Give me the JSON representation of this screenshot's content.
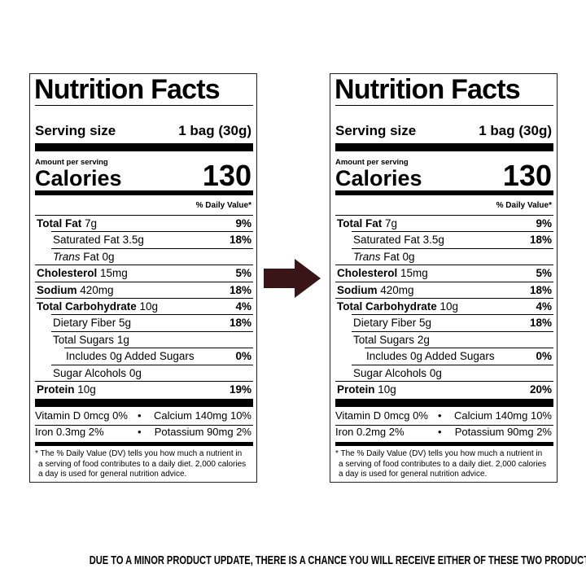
{
  "labels": [
    {
      "title": "Nutrition Facts",
      "serving_label": "Serving size",
      "serving_value": "1 bag (30g)",
      "amount_per_serving": "Amount per serving",
      "calories_label": "Calories",
      "calories_value": "130",
      "dv_header": "% Daily Value*",
      "rows": [
        {
          "name": "Total Fat",
          "detail": "7g",
          "dv": "9%"
        },
        {
          "name": "Saturated Fat",
          "detail": "3.5g",
          "dv": "18%"
        },
        {
          "name": "Trans",
          "detail": "Fat 0g"
        },
        {
          "name": "Cholesterol",
          "detail": "15mg",
          "dv": "5%"
        },
        {
          "name": "Sodium",
          "detail": "420mg",
          "dv": "18%"
        },
        {
          "name": "Total Carbohydrate",
          "detail": "10g",
          "dv": "4%"
        },
        {
          "name": "Dietary Fiber",
          "detail": "5g",
          "dv": "18%"
        },
        {
          "name": "Total Sugars",
          "detail": "1g"
        },
        {
          "name": "Includes 0g Added Sugars",
          "dv": "0%"
        },
        {
          "name": "Sugar Alcohols",
          "detail": "0g"
        },
        {
          "name": "Protein",
          "detail": "10g",
          "dv": "19%"
        }
      ],
      "vitamins": [
        [
          "Vitamin D 0mcg 0%",
          "Calcium 140mg 10%"
        ],
        [
          "Iron 0.3mg 2%",
          "Potassium 90mg 2%"
        ]
      ],
      "footnote_lines": [
        "* The % Daily Value (DV) tells you how much a nutrient in",
        "a serving of food contributes to a daily diet. 2,000 calories",
        "a day is used for general nutrition advice."
      ]
    },
    {
      "title": "Nutrition Facts",
      "serving_label": "Serving size",
      "serving_value": "1 bag (30g)",
      "amount_per_serving": "Amount per serving",
      "calories_label": "Calories",
      "calories_value": "130",
      "dv_header": "% Daily Value*",
      "rows": [
        {
          "name": "Total Fat",
          "detail": "7g",
          "dv": "9%"
        },
        {
          "name": "Saturated Fat",
          "detail": "3.5g",
          "dv": "18%"
        },
        {
          "name": "Trans",
          "detail": "Fat 0g"
        },
        {
          "name": "Cholesterol",
          "detail": "15mg",
          "dv": "5%"
        },
        {
          "name": "Sodium",
          "detail": "420mg",
          "dv": "18%"
        },
        {
          "name": "Total Carbohydrate",
          "detail": "10g",
          "dv": "4%"
        },
        {
          "name": "Dietary Fiber",
          "detail": "5g",
          "dv": "18%"
        },
        {
          "name": "Total Sugars",
          "detail": "2g"
        },
        {
          "name": "Includes 0g Added Sugars",
          "dv": "0%"
        },
        {
          "name": "Sugar Alcohols",
          "detail": "0g"
        },
        {
          "name": "Protein",
          "detail": "10g",
          "dv": "20%"
        }
      ],
      "vitamins": [
        [
          "Vitamin D 0mcg 0%",
          "Calcium 140mg 10%"
        ],
        [
          "Iron 0.2mg 2%",
          "Potassium 90mg 2%"
        ]
      ],
      "footnote_lines": [
        "* The % Daily Value (DV) tells you how much a nutrient in",
        "a serving of food contributes to a daily diet. 2,000 calories",
        "a day is used for general nutrition advice."
      ]
    }
  ],
  "footer": "DUE TO A MINOR PRODUCT UPDATE, THERE IS A CHANCE YOU WILL RECEIVE EITHER OF THESE TWO PRODUCTS."
}
